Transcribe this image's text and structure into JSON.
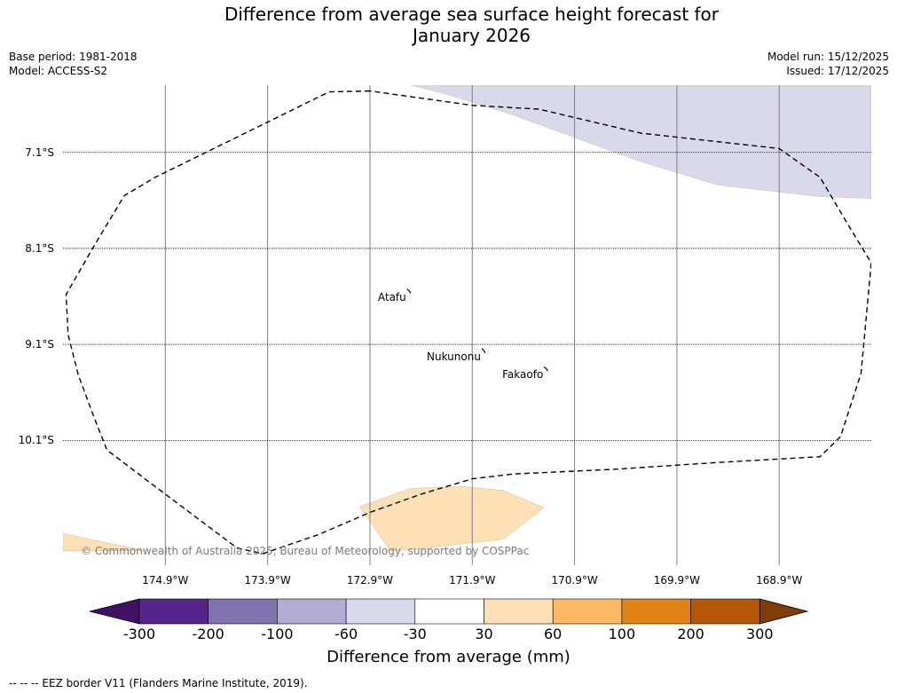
{
  "title_line1": "Difference from average sea surface height forecast for",
  "title_line2": "January 2026",
  "base_period": "Base period: 1981-2018",
  "model": "Model: ACCESS-S2",
  "model_run": "Model run: 15/12/2025",
  "issued": "Issued: 17/12/2025",
  "map": {
    "extent": {
      "lon_min": -175.9,
      "lon_max": -168.0,
      "lat_min": -11.4,
      "lat_max": -6.4
    },
    "lat_labels": [
      {
        "value": -7.1,
        "text": "7.1°S"
      },
      {
        "value": -8.1,
        "text": "8.1°S"
      },
      {
        "value": -9.1,
        "text": "9.1°S"
      },
      {
        "value": -10.1,
        "text": "10.1°S"
      }
    ],
    "lon_labels": [
      {
        "value": -174.9,
        "text": "174.9°W"
      },
      {
        "value": -173.9,
        "text": "173.9°W"
      },
      {
        "value": -172.9,
        "text": "172.9°W"
      },
      {
        "value": -171.9,
        "text": "171.9°W"
      },
      {
        "value": -170.9,
        "text": "170.9°W"
      },
      {
        "value": -169.9,
        "text": "169.9°W"
      },
      {
        "value": -168.9,
        "text": "168.9°W"
      }
    ],
    "places": [
      {
        "name": "Atafu",
        "lon": -172.52,
        "lat": -8.55
      },
      {
        "name": "Nukunonu",
        "lon": -171.79,
        "lat": -9.17
      },
      {
        "name": "Fakaofo",
        "lon": -171.18,
        "lat": -9.36
      }
    ],
    "shaded_regions": [
      {
        "category": "-60 to -30 mm",
        "color": "#d8d9ea",
        "polygon": [
          [
            -172.5,
            -6.4
          ],
          [
            -168.0,
            -6.4
          ],
          [
            -168.0,
            -7.58
          ],
          [
            -168.5,
            -7.56
          ],
          [
            -169.5,
            -7.44
          ],
          [
            -170.3,
            -7.18
          ],
          [
            -171.5,
            -6.71
          ],
          [
            -172.2,
            -6.48
          ]
        ]
      },
      {
        "category": "30 to 60 mm",
        "color": "#fee0b6",
        "polygon": [
          [
            -173.0,
            -10.79
          ],
          [
            -172.5,
            -10.6
          ],
          [
            -172.0,
            -10.58
          ],
          [
            -171.6,
            -10.62
          ],
          [
            -171.2,
            -10.8
          ],
          [
            -171.6,
            -11.13
          ],
          [
            -172.2,
            -11.2
          ],
          [
            -172.4,
            -11.23
          ],
          [
            -172.7,
            -11.25
          ]
        ]
      },
      {
        "category": "30 to 60 mm",
        "color": "#fee0b6",
        "polygon": [
          [
            -175.9,
            -11.07
          ],
          [
            -175.1,
            -11.25
          ],
          [
            -175.9,
            -11.25
          ]
        ]
      }
    ],
    "eez_border": [
      [
        -172.9,
        -6.46
      ],
      [
        -173.3,
        -6.47
      ],
      [
        -175.0,
        -7.36
      ],
      [
        -175.3,
        -7.55
      ],
      [
        -175.6,
        -8.08
      ],
      [
        -175.87,
        -8.58
      ],
      [
        -175.85,
        -9.0
      ],
      [
        -175.75,
        -9.42
      ],
      [
        -175.6,
        -9.85
      ],
      [
        -175.47,
        -10.2
      ],
      [
        -175.0,
        -10.58
      ],
      [
        -174.6,
        -10.9
      ],
      [
        -174.2,
        -11.22
      ],
      [
        -173.95,
        -11.28
      ],
      [
        -173.4,
        -11.08
      ],
      [
        -172.9,
        -10.85
      ],
      [
        -172.4,
        -10.66
      ],
      [
        -171.9,
        -10.5
      ],
      [
        -171.5,
        -10.45
      ],
      [
        -170.5,
        -10.4
      ],
      [
        -169.5,
        -10.33
      ],
      [
        -168.5,
        -10.27
      ],
      [
        -168.3,
        -10.06
      ],
      [
        -168.1,
        -9.4
      ],
      [
        -168.0,
        -8.25
      ],
      [
        -168.2,
        -7.9
      ],
      [
        -168.5,
        -7.36
      ],
      [
        -168.9,
        -7.06
      ],
      [
        -170.25,
        -6.9
      ],
      [
        -171.25,
        -6.65
      ],
      [
        -171.9,
        -6.61
      ],
      [
        -172.9,
        -6.46
      ]
    ]
  },
  "copyright": "© Commonwealth of Australia 2025, Bureau of Meteorology, supported by COSPPac",
  "colorbar": {
    "label": "Difference from average (mm)",
    "ticks": [
      "-300",
      "-200",
      "-100",
      "-60",
      "-30",
      "30",
      "60",
      "100",
      "200",
      "300"
    ],
    "colors": [
      "#3f1163",
      "#57248b",
      "#8073ad",
      "#b2abd3",
      "#d8d9ea",
      "#ffffff",
      "#fee0b6",
      "#fdb863",
      "#e08214",
      "#b35806",
      "#7f3b08"
    ]
  },
  "footnote": "--  --  -- EEZ border V11 (Flanders Marine Institute, 2019)."
}
